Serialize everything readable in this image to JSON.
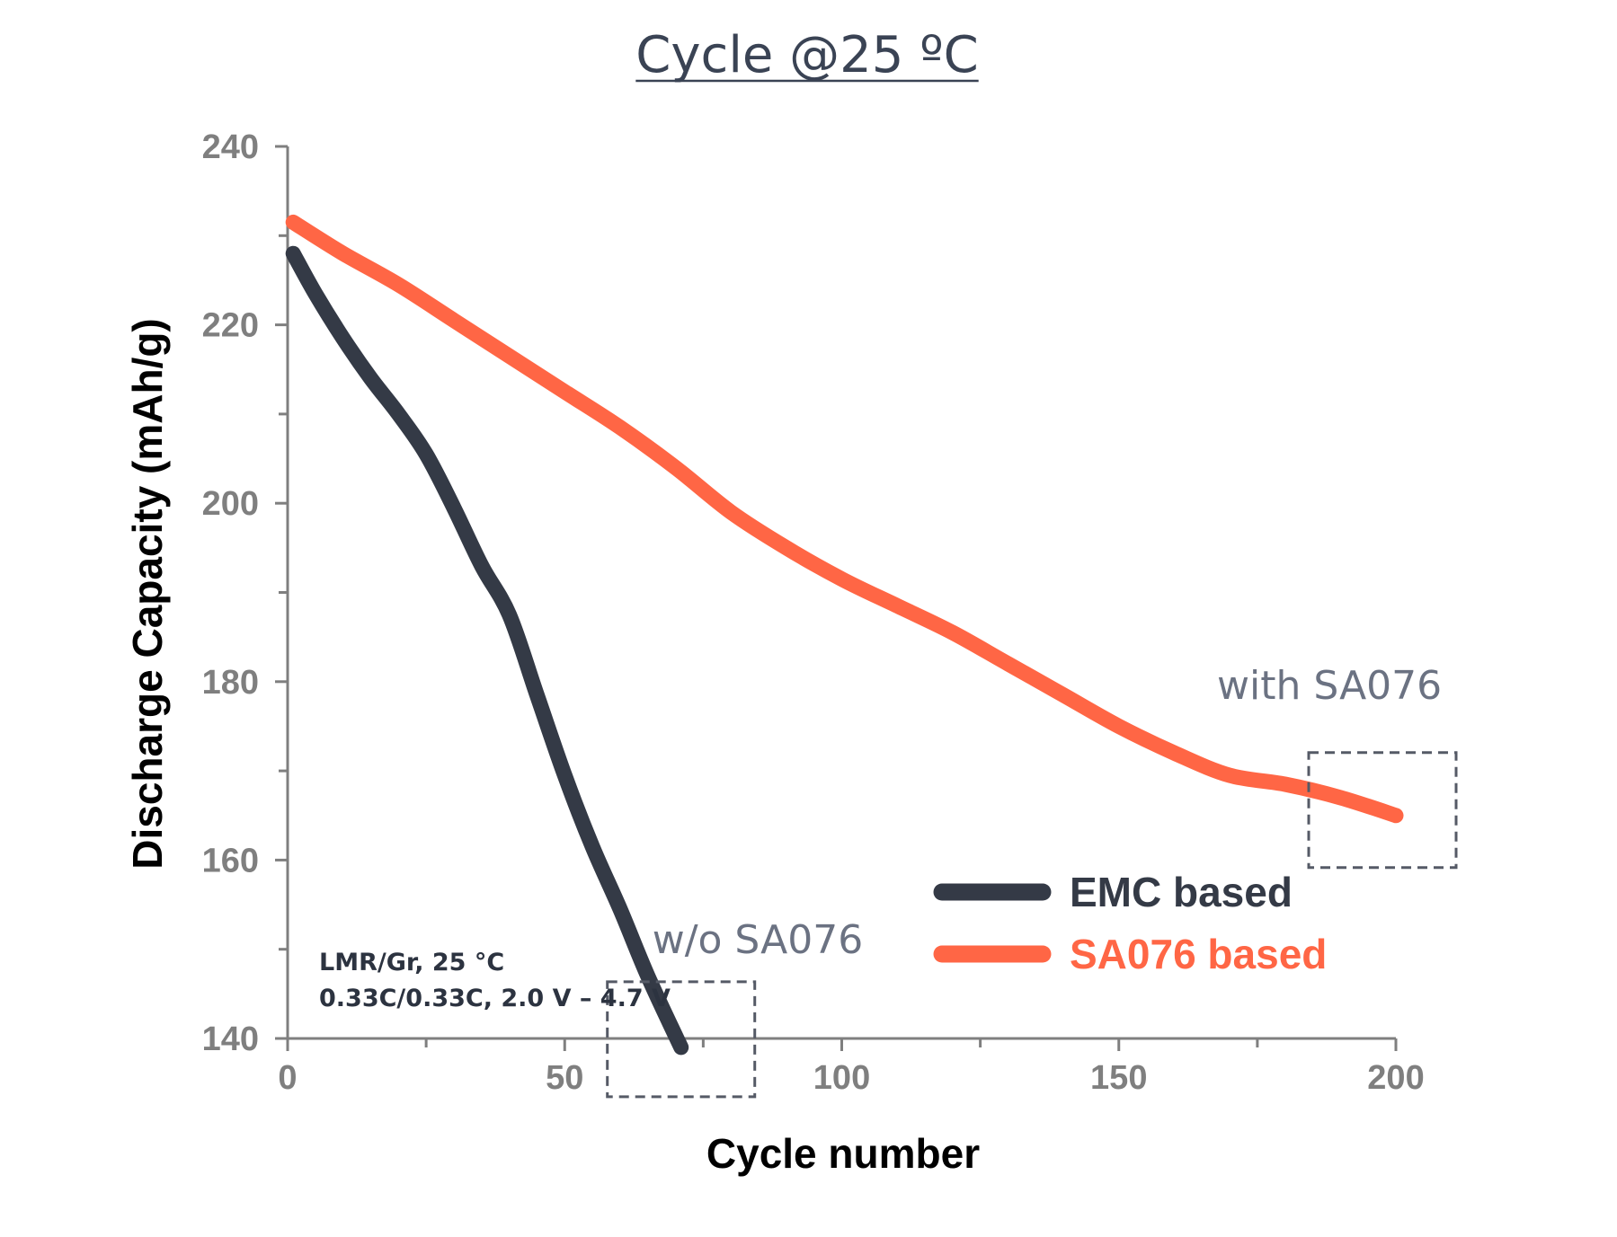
{
  "chart_data": {
    "type": "line",
    "title": "Cycle @25 ºC",
    "xlabel": "Cycle number",
    "ylabel": "Discharge Capacity (mAh/g)",
    "xlim": [
      0,
      200
    ],
    "ylim": [
      140,
      240
    ],
    "xticks": [
      0,
      50,
      100,
      150,
      200
    ],
    "yticks": [
      140,
      160,
      180,
      200,
      220,
      240
    ],
    "grid": false,
    "legend_position": "bottom-right",
    "series": [
      {
        "name": "EMC based",
        "color": "#343a46",
        "x": [
          1,
          5,
          10,
          15,
          20,
          25,
          30,
          35,
          40,
          45,
          50,
          55,
          60,
          65,
          71
        ],
        "y": [
          228,
          223.5,
          218.5,
          214,
          210,
          205.5,
          199.5,
          193,
          187.5,
          178.5,
          169.5,
          161.5,
          154.5,
          147,
          139
        ]
      },
      {
        "name": "SA076 based",
        "color": "#ff6645",
        "x": [
          1,
          10,
          20,
          30,
          40,
          50,
          60,
          70,
          80,
          90,
          100,
          110,
          120,
          130,
          140,
          150,
          160,
          170,
          180,
          190,
          200
        ],
        "y": [
          231.5,
          228,
          224.5,
          220.5,
          216.5,
          212.5,
          208.5,
          204,
          199,
          195,
          191.5,
          188.5,
          185.5,
          182,
          178.5,
          175,
          172,
          169.5,
          168.5,
          167,
          165
        ]
      }
    ],
    "annotations": [
      {
        "text": "w/o SA076",
        "target_series": "EMC based"
      },
      {
        "text": "with SA076",
        "target_series": "SA076 based"
      }
    ],
    "conditions": [
      "LMR/Gr, 25 °C",
      "0.33C/0.33C, 2.0 V – 4.7 V"
    ]
  }
}
